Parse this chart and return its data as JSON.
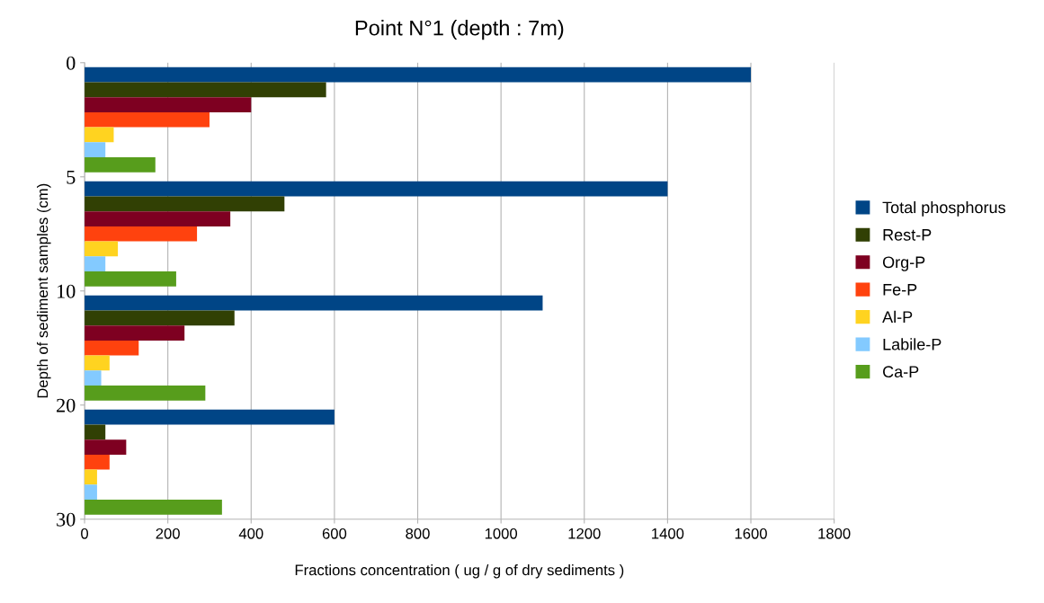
{
  "chart_data": {
    "type": "bar",
    "orientation": "horizontal",
    "title": "Point N°1 (depth : 7m)",
    "xlabel": "Fractions concentration ( ug / g of dry sediments )",
    "ylabel": "Depth of sediment samples (cm)",
    "categories": [
      null,
      null,
      null,
      null
    ],
    "annotations": [
      "0",
      "5",
      "10",
      "20",
      "30"
    ],
    "series": [
      {
        "name": "Total phosphorus",
        "color": "#004586",
        "values": [
          1600,
          1400,
          1100,
          600
        ]
      },
      {
        "name": "Rest-P",
        "color": "#314004",
        "values": [
          580,
          480,
          360,
          50
        ]
      },
      {
        "name": "Org-P",
        "color": "#7e0021",
        "values": [
          400,
          350,
          240,
          100
        ]
      },
      {
        "name": "Fe-P",
        "color": "#ff420e",
        "values": [
          300,
          270,
          130,
          60
        ]
      },
      {
        "name": "Al-P",
        "color": "#ffd320",
        "values": [
          70,
          80,
          60,
          30
        ]
      },
      {
        "name": "Labile-P",
        "color": "#83caff",
        "values": [
          50,
          50,
          40,
          30
        ]
      },
      {
        "name": "Ca-P",
        "color": "#579d1c",
        "values": [
          170,
          220,
          290,
          330
        ]
      }
    ],
    "xlim": [
      0,
      1800
    ],
    "xticks": [
      0,
      200,
      400,
      600,
      800,
      1000,
      1200,
      1400,
      1600,
      1800
    ],
    "grid": "x",
    "legend": "right"
  }
}
